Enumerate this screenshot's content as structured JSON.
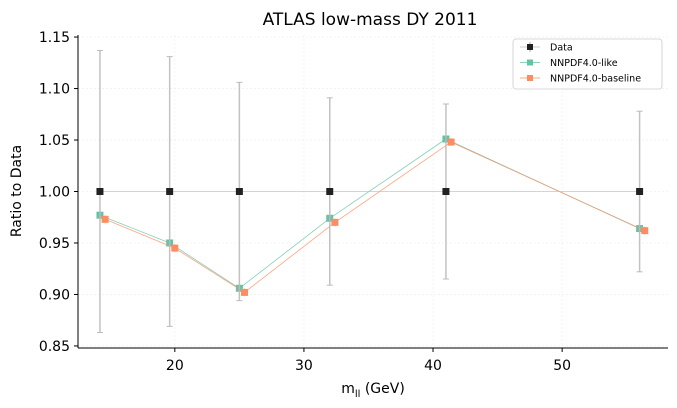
{
  "chart_data": {
    "type": "line",
    "title": "ATLAS low-mass DY 2011",
    "xlabel": "m",
    "xlabel_subscript": "ll",
    "xlabel_unit": " (GeV)",
    "ylabel": "Ratio to Data",
    "xlim": [
      12.5,
      58.2
    ],
    "ylim": [
      0.848,
      1.152
    ],
    "xticks": [
      20,
      30,
      40,
      50
    ],
    "xtick_labels": [
      "20",
      "30",
      "40",
      "50"
    ],
    "yticks": [
      0.85,
      0.9,
      0.95,
      1.0,
      1.05,
      1.1,
      1.15
    ],
    "ytick_labels": [
      "0.85",
      "0.90",
      "0.95",
      "1.00",
      "1.05",
      "1.10",
      "1.15"
    ],
    "grid": true,
    "legend_position": "top-right",
    "series": [
      {
        "name": "Data",
        "color": "#222222",
        "line_color": "#bbbbbb",
        "marker": "square",
        "x": [
          14.2,
          19.6,
          25.0,
          32.0,
          41.0,
          56.0
        ],
        "y": [
          1.0,
          1.0,
          1.0,
          1.0,
          1.0,
          1.0
        ],
        "err": [
          0.137,
          0.131,
          0.106,
          0.091,
          0.085,
          0.078
        ]
      },
      {
        "name": "NNPDF4.0-like",
        "color": "#66c2a5",
        "marker": "square",
        "x": [
          14.2,
          19.6,
          25.0,
          32.0,
          41.0,
          56.0
        ],
        "y": [
          0.977,
          0.95,
          0.906,
          0.974,
          1.051,
          0.964
        ],
        "err": [
          0.003,
          0.003,
          0.003,
          0.003,
          0.003,
          0.003
        ]
      },
      {
        "name": "NNPDF4.0-baseline",
        "color": "#fc8d62",
        "marker": "square",
        "x": [
          14.6,
          20.0,
          25.4,
          32.4,
          41.4,
          56.4
        ],
        "y": [
          0.973,
          0.945,
          0.902,
          0.97,
          1.048,
          0.962
        ],
        "err": [
          0.004,
          0.004,
          0.004,
          0.004,
          0.004,
          0.004
        ]
      }
    ]
  }
}
